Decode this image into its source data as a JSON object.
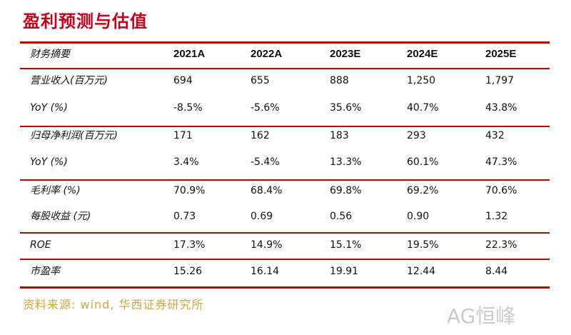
{
  "title": "盈利预测与估值",
  "table": {
    "header_label": "财务摘要",
    "years": [
      "2021A",
      "2022A",
      "2023E",
      "2024E",
      "2025E"
    ],
    "rows": [
      {
        "label": "营业收入(百万元)",
        "values": [
          "694",
          "655",
          "888",
          "1,250",
          "1,797"
        ]
      },
      {
        "label": "YoY (%)",
        "values": [
          "-8.5%",
          "-5.6%",
          "35.6%",
          "40.7%",
          "43.8%"
        ]
      },
      {
        "label": "归母净利润(百万元)",
        "values": [
          "171",
          "162",
          "183",
          "293",
          "432"
        ]
      },
      {
        "label": "YoY (%)",
        "values": [
          "3.4%",
          "-5.4%",
          "13.3%",
          "60.1%",
          "47.3%"
        ]
      },
      {
        "label": "毛利率 (%)",
        "values": [
          "70.9%",
          "68.4%",
          "69.8%",
          "69.2%",
          "70.6%"
        ]
      },
      {
        "label": "每股收益 (元)",
        "values": [
          "0.73",
          "0.69",
          "0.56",
          "0.90",
          "1.32"
        ]
      },
      {
        "label": "ROE",
        "values": [
          "17.3%",
          "14.9%",
          "15.1%",
          "19.5%",
          "22.3%"
        ]
      },
      {
        "label": "市盈率",
        "values": [
          "15.26",
          "16.14",
          "19.91",
          "12.44",
          "8.44"
        ]
      }
    ]
  },
  "source": "资料来源: wind, 华西证券研究所",
  "watermark": "AG恒峰",
  "colors": {
    "accent": "#c00000",
    "source": "#c9a64a"
  }
}
